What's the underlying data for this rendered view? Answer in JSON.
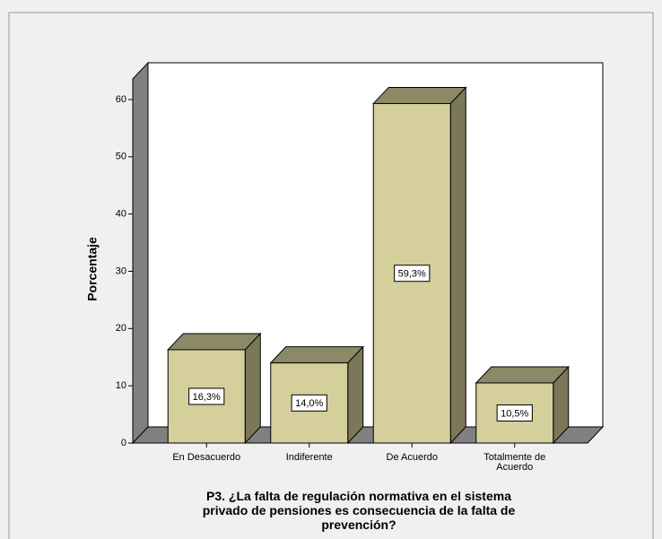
{
  "chart_data": {
    "type": "bar",
    "categories": [
      "En Desacuerdo",
      "Indiferente",
      "De Acuerdo",
      "Totalmente de Acuerdo"
    ],
    "values": [
      16.3,
      14.0,
      59.3,
      10.5
    ],
    "value_labels": [
      "16,3%",
      "14,0%",
      "59,3%",
      "10,5%"
    ],
    "color": "#d4cf9b",
    "ylabel": "Porcentaje",
    "xlabel": [
      "P3. ¿La falta de regulación normativa en el sistema",
      "privado de pensiones es consecuencia de la falta de",
      "prevención?"
    ],
    "ylim": [
      0,
      63.6
    ],
    "yticks": [
      0,
      10,
      20,
      30,
      40,
      50,
      60
    ],
    "grid": false
  }
}
